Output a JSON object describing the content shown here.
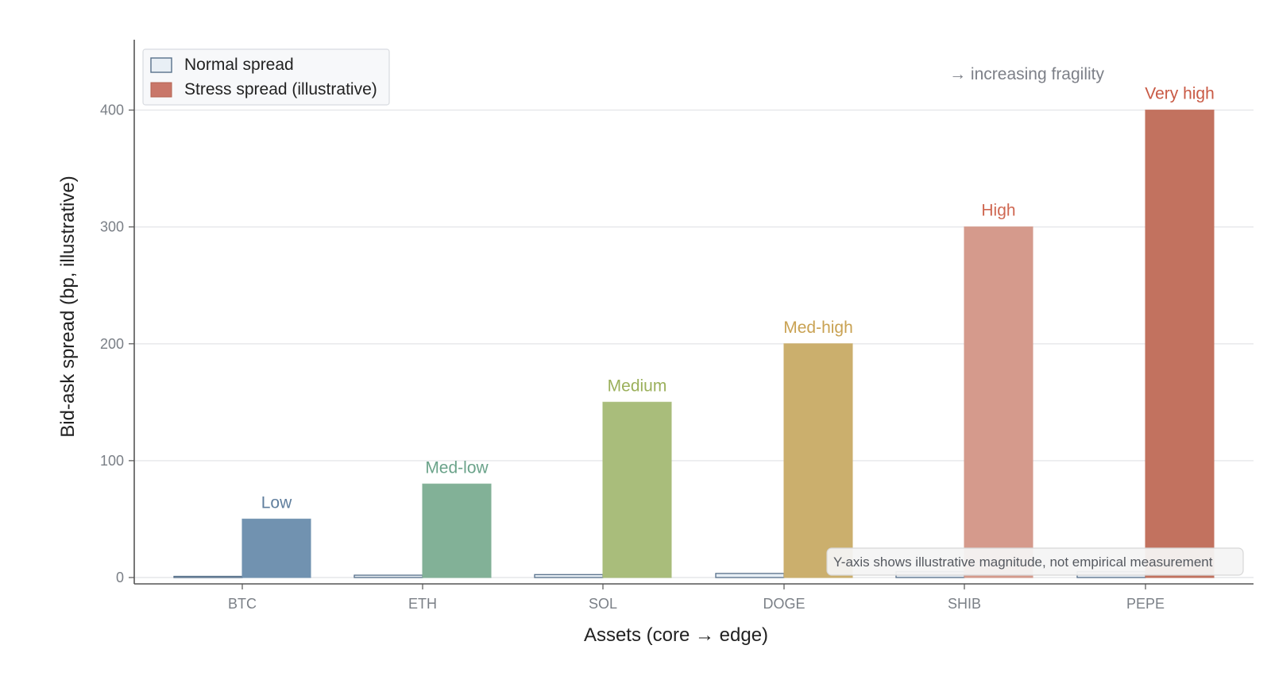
{
  "chart_data": {
    "type": "bar",
    "xlabel": "Assets (core → edge)",
    "ylabel": "Bid-ask spread (bp, illustrative)",
    "ylim": [
      0,
      450
    ],
    "yticks": [
      0,
      100,
      200,
      300,
      400
    ],
    "grid": "horizontal",
    "legend_position": "top-left",
    "categories": [
      "BTC",
      "ETH",
      "SOL",
      "DOGE",
      "SHIB",
      "PEPE"
    ],
    "series": [
      {
        "name": "Normal spread",
        "values": [
          1,
          2,
          2.5,
          3.5,
          5,
          5
        ],
        "legend_color": "#e8eff5",
        "legend_stroke": "#58718b"
      },
      {
        "name": "Stress spread (illustrative)",
        "values": [
          50,
          80,
          150,
          200,
          300,
          400
        ],
        "legend_color": "#c9776a"
      }
    ],
    "bar_labels": [
      "Low",
      "Med-low",
      "Medium",
      "Med-high",
      "High",
      "Very high"
    ],
    "colors": {
      "stress": [
        "#7192b0",
        "#82b197",
        "#a9bd7b",
        "#cbaf6d",
        "#d59a8c",
        "#c2725f"
      ],
      "labels": [
        "#5f7e9d",
        "#6ba38a",
        "#9bb05b",
        "#c9a253",
        "#cf6852",
        "#c95a45"
      ],
      "normal_fill": "#e8eff5",
      "normal_stroke": "#58718b"
    },
    "annotations": {
      "fragility": "→ increasing fragility",
      "note": "Y-axis shows illustrative magnitude, not empirical measurement"
    }
  }
}
